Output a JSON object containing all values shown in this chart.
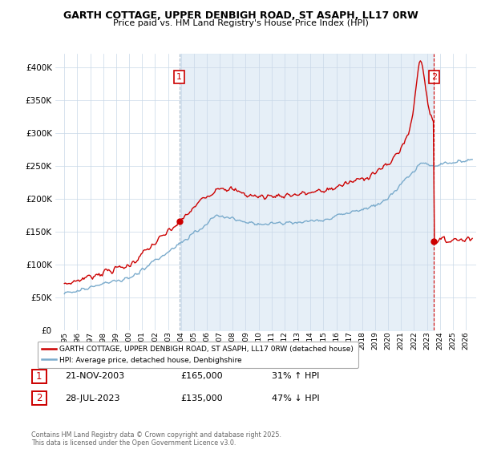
{
  "title1": "GARTH COTTAGE, UPPER DENBIGH ROAD, ST ASAPH, LL17 0RW",
  "title2": "Price paid vs. HM Land Registry's House Price Index (HPI)",
  "red_label": "GARTH COTTAGE, UPPER DENBIGH ROAD, ST ASAPH, LL17 0RW (detached house)",
  "blue_label": "HPI: Average price, detached house, Denbighshire",
  "sale1_date": "21-NOV-2003",
  "sale1_price": 165000,
  "sale1_hpi": "31% ↑ HPI",
  "sale2_date": "28-JUL-2023",
  "sale2_price": 135000,
  "sale2_hpi": "47% ↓ HPI",
  "footer": "Contains HM Land Registry data © Crown copyright and database right 2025.\nThis data is licensed under the Open Government Licence v3.0.",
  "red_color": "#cc0000",
  "blue_color": "#7aabcc",
  "blue_fill": "#dce9f5",
  "grid_color": "#c8d8e8",
  "bg_color": "#ffffff",
  "ylim": [
    0,
    420000
  ],
  "yticks": [
    0,
    50000,
    100000,
    150000,
    200000,
    250000,
    300000,
    350000,
    400000
  ],
  "sale1_t": 2003.88,
  "sale2_t": 2023.54
}
